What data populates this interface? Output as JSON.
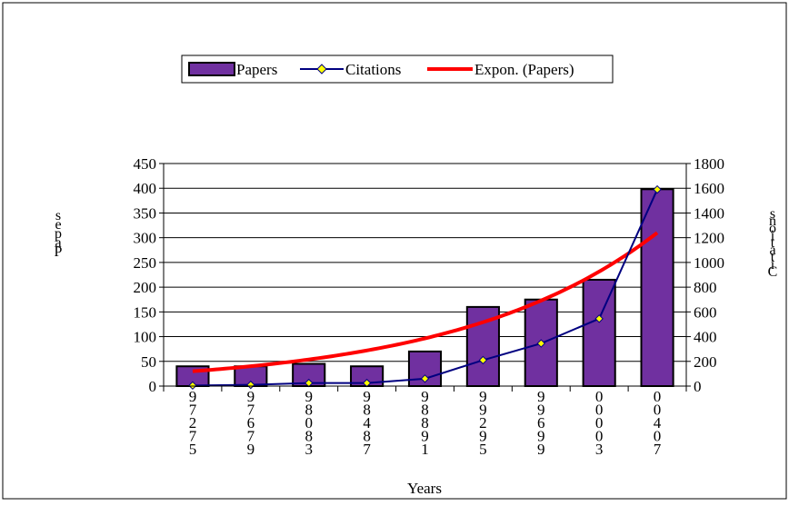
{
  "chart_data": {
    "type": "bar",
    "categories": [
      "1975",
      "1979",
      "1983",
      "1987",
      "1991",
      "1995",
      "1999",
      "2003",
      "2007"
    ],
    "x_tick_labels": [
      "9\n7\n2\n7\n5",
      "9\n7\n6\n7\n9",
      "9\n8\n0\n8\n3",
      "9\n8\n4\n8\n7",
      "9\n8\n8\n9\n1",
      "9\n9\n2\n9\n5",
      "9\n9\n6\n9\n9",
      "0\n0\n0\n0\n3",
      "0\n0\n4\n0\n7"
    ],
    "series": [
      {
        "name": "Papers",
        "type": "bar",
        "axis": "left",
        "color": "#7030A0",
        "values": [
          40,
          40,
          45,
          40,
          70,
          160,
          175,
          215,
          398
        ]
      },
      {
        "name": "Citations",
        "type": "line",
        "axis": "right",
        "color": "#000080",
        "marker_color": "#FFFF00",
        "values": [
          5,
          10,
          25,
          25,
          60,
          210,
          345,
          545,
          1590
        ]
      },
      {
        "name": "Expon. (Papers)",
        "type": "trendline",
        "axis": "left",
        "color": "#FF0000",
        "values": [
          30,
          39,
          52,
          69,
          92,
          122,
          162,
          215,
          310
        ]
      }
    ],
    "xlabel": "Years",
    "ylabel": "Papers",
    "ylabel_rendered": "s\ne\np\na\nP",
    "y2label": "Citations",
    "y2label_rendered": "s\nn\no\ni\nt\na\nt\ni\nC",
    "ylim": [
      0,
      450
    ],
    "y2lim": [
      0,
      1800
    ],
    "yticks": [
      "0",
      "50",
      "100",
      "150",
      "200",
      "250",
      "300",
      "350",
      "400",
      "450"
    ],
    "y2ticks": [
      "0",
      "200",
      "400",
      "600",
      "800",
      "1000",
      "1200",
      "1400",
      "1600",
      "1800"
    ],
    "grid": true,
    "legend_position": "top"
  }
}
